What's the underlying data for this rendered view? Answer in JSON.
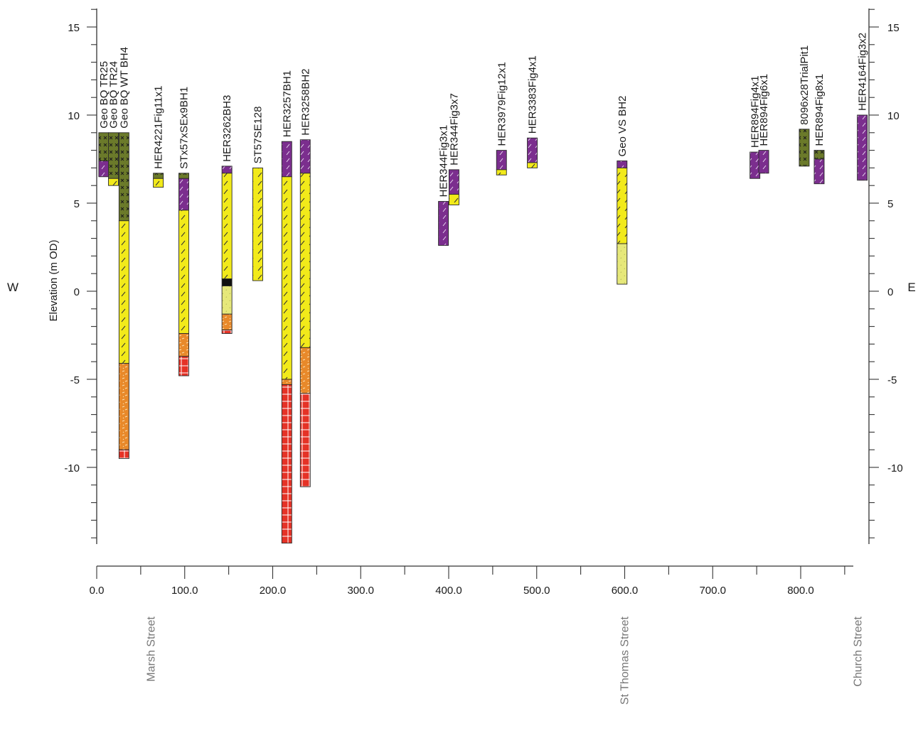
{
  "left_label": "W",
  "right_label": "E",
  "y_axis_title": "Elevation (m OD)",
  "colors": {
    "purple": "#7b2e8e",
    "olive": "#6b7a2a",
    "yellow": "#f2ea1a",
    "pale_yellow": "#e6e87a",
    "orange": "#e8892a",
    "red": "#e53226",
    "black": "#111111"
  },
  "streets": [
    {
      "name": "Marsh Street",
      "x": 62
    },
    {
      "name": "St Thomas Street",
      "x": 600
    },
    {
      "name": "Church Street",
      "x": 865
    }
  ],
  "chart_data": {
    "type": "stratigraphic-section",
    "xlabel": "",
    "ylabel": "Elevation (m OD)",
    "xlim": [
      0,
      860
    ],
    "ylim": [
      -14.5,
      16
    ],
    "x_ticks": [
      0,
      100,
      200,
      300,
      400,
      500,
      600,
      700,
      800
    ],
    "x_tick_labels": [
      "0.0",
      "100.0",
      "200.0",
      "300.0",
      "400.0",
      "500.0",
      "600.0",
      "700.0",
      "800.0"
    ],
    "y_ticks": [
      15,
      10,
      5,
      0,
      -5,
      -10
    ],
    "y_tick_labels": [
      "15",
      "10",
      "5",
      "0",
      "-5",
      "-10"
    ],
    "boreholes": [
      {
        "name": "Geo BQ TR25",
        "x": 8,
        "top": 9,
        "layers": [
          {
            "from": 9,
            "to": 7.4,
            "color": "olive"
          },
          {
            "from": 7.4,
            "to": 6.5,
            "color": "purple"
          }
        ]
      },
      {
        "name": "Geo BQ TR24",
        "x": 19,
        "top": 9,
        "layers": [
          {
            "from": 9,
            "to": 6.4,
            "color": "olive"
          },
          {
            "from": 6.4,
            "to": 6.0,
            "color": "yellow"
          }
        ]
      },
      {
        "name": "Geo BQ WT BH4",
        "x": 31,
        "top": 9,
        "layers": [
          {
            "from": 9,
            "to": 4.0,
            "color": "olive"
          },
          {
            "from": 4.0,
            "to": -4.1,
            "color": "yellow"
          },
          {
            "from": -4.1,
            "to": -9.0,
            "color": "orange"
          },
          {
            "from": -9.0,
            "to": -9.5,
            "color": "red"
          }
        ]
      },
      {
        "name": "HER4221Fig11x1",
        "x": 70,
        "top": 6.7,
        "layers": [
          {
            "from": 6.7,
            "to": 6.4,
            "color": "olive"
          },
          {
            "from": 6.4,
            "to": 5.9,
            "color": "yellow"
          }
        ]
      },
      {
        "name": "STx57xSEx9BH1",
        "x": 99,
        "top": 6.7,
        "layers": [
          {
            "from": 6.7,
            "to": 6.4,
            "color": "olive"
          },
          {
            "from": 6.4,
            "to": 4.6,
            "color": "purple"
          },
          {
            "from": 4.6,
            "to": -2.4,
            "color": "yellow"
          },
          {
            "from": -2.4,
            "to": -3.7,
            "color": "orange"
          },
          {
            "from": -3.7,
            "to": -4.8,
            "color": "red"
          }
        ]
      },
      {
        "name": "HER3262BH3",
        "x": 148,
        "top": 7.1,
        "layers": [
          {
            "from": 7.1,
            "to": 6.7,
            "color": "purple"
          },
          {
            "from": 6.7,
            "to": 0.7,
            "color": "yellow"
          },
          {
            "from": 0.7,
            "to": 0.3,
            "color": "black"
          },
          {
            "from": 0.3,
            "to": -1.3,
            "color": "pale_yellow"
          },
          {
            "from": -1.3,
            "to": -2.2,
            "color": "orange"
          },
          {
            "from": -2.2,
            "to": -2.4,
            "color": "red"
          }
        ]
      },
      {
        "name": "ST57SE128",
        "x": 183,
        "top": 7.0,
        "layers": [
          {
            "from": 7.0,
            "to": 0.6,
            "color": "yellow"
          }
        ]
      },
      {
        "name": "HER3257BH1",
        "x": 216,
        "top": 8.5,
        "layers": [
          {
            "from": 8.5,
            "to": 6.5,
            "color": "purple"
          },
          {
            "from": 6.5,
            "to": -5.0,
            "color": "yellow"
          },
          {
            "from": -5.0,
            "to": -5.3,
            "color": "orange"
          },
          {
            "from": -5.3,
            "to": -14.3,
            "color": "red"
          }
        ]
      },
      {
        "name": "HER3258BH2",
        "x": 237,
        "top": 8.6,
        "layers": [
          {
            "from": 8.6,
            "to": 6.7,
            "color": "purple"
          },
          {
            "from": 6.7,
            "to": -3.2,
            "color": "yellow"
          },
          {
            "from": -3.2,
            "to": -5.8,
            "color": "orange"
          },
          {
            "from": -5.8,
            "to": -11.1,
            "color": "red"
          }
        ]
      },
      {
        "name": "HER344Fig3x1",
        "x": 394,
        "top": 5.1,
        "layers": [
          {
            "from": 5.1,
            "to": 2.6,
            "color": "purple"
          }
        ]
      },
      {
        "name": "HER344Fig3x7",
        "x": 406,
        "top": 6.9,
        "layers": [
          {
            "from": 6.9,
            "to": 5.5,
            "color": "purple"
          },
          {
            "from": 5.5,
            "to": 4.9,
            "color": "yellow"
          }
        ]
      },
      {
        "name": "HER3979Fig12x1",
        "x": 460,
        "top": 8.0,
        "layers": [
          {
            "from": 8.0,
            "to": 6.9,
            "color": "purple"
          },
          {
            "from": 6.9,
            "to": 6.6,
            "color": "yellow"
          }
        ]
      },
      {
        "name": "HER3383Fig4x1",
        "x": 495,
        "top": 8.7,
        "layers": [
          {
            "from": 8.7,
            "to": 7.3,
            "color": "purple"
          },
          {
            "from": 7.3,
            "to": 7.0,
            "color": "yellow"
          }
        ]
      },
      {
        "name": "Geo VS BH2",
        "x": 597,
        "top": 7.4,
        "layers": [
          {
            "from": 7.4,
            "to": 7.0,
            "color": "purple"
          },
          {
            "from": 7.0,
            "to": 2.7,
            "color": "yellow"
          },
          {
            "from": 2.7,
            "to": 0.4,
            "color": "pale_yellow"
          }
        ]
      },
      {
        "name": "HER894Fig4x1",
        "x": 748,
        "top": 7.9,
        "layers": [
          {
            "from": 7.9,
            "to": 6.4,
            "color": "purple"
          }
        ]
      },
      {
        "name": "HER894Fig6x1",
        "x": 758,
        "top": 8.0,
        "layers": [
          {
            "from": 8.0,
            "to": 6.7,
            "color": "purple"
          }
        ]
      },
      {
        "name": "8096x28TrialPit1",
        "x": 804,
        "top": 9.2,
        "layers": [
          {
            "from": 9.2,
            "to": 7.1,
            "color": "olive"
          }
        ]
      },
      {
        "name": "HER894Fig8x1",
        "x": 821,
        "top": 8.0,
        "layers": [
          {
            "from": 8.0,
            "to": 7.5,
            "color": "olive"
          },
          {
            "from": 7.5,
            "to": 6.1,
            "color": "purple"
          }
        ]
      },
      {
        "name": "HER4164Fig3x2",
        "x": 870,
        "top": 10.0,
        "layers": [
          {
            "from": 10.0,
            "to": 6.3,
            "color": "purple"
          }
        ]
      }
    ]
  }
}
